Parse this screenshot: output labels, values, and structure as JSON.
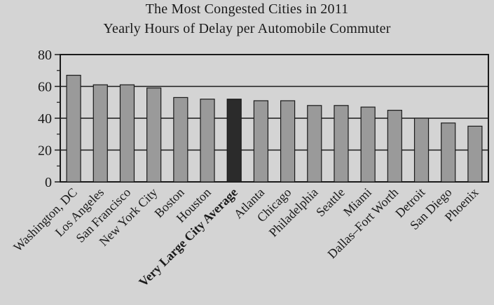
{
  "chart_data": {
    "type": "bar",
    "title": "The Most Congested Cities in 2011",
    "subtitle": "Yearly Hours of Delay per Automobile Commuter",
    "xlabel": "",
    "ylabel": "",
    "ylim": [
      0,
      80
    ],
    "yticks": [
      0,
      20,
      40,
      60,
      80
    ],
    "grid": true,
    "categories": [
      "Washington, DC",
      "Los Angeles",
      "San Francisco",
      "New York City",
      "Boston",
      "Houston",
      "Very Large City Average",
      "Atlanta",
      "Chicago",
      "Philadelphia",
      "Seattle",
      "Miami",
      "Dallas–Fort Worth",
      "Detroit",
      "San Diego",
      "Phoenix"
    ],
    "values": [
      67,
      61,
      61,
      59,
      53,
      52,
      52,
      51,
      51,
      48,
      48,
      47,
      45,
      40,
      37,
      35
    ],
    "highlight_index": 6,
    "colors": {
      "bar": "#9a9a9a",
      "highlight": "#2b2b2b",
      "axis": "#1a1a1a",
      "grid": "#1a1a1a",
      "background": "#d4d4d4"
    }
  }
}
